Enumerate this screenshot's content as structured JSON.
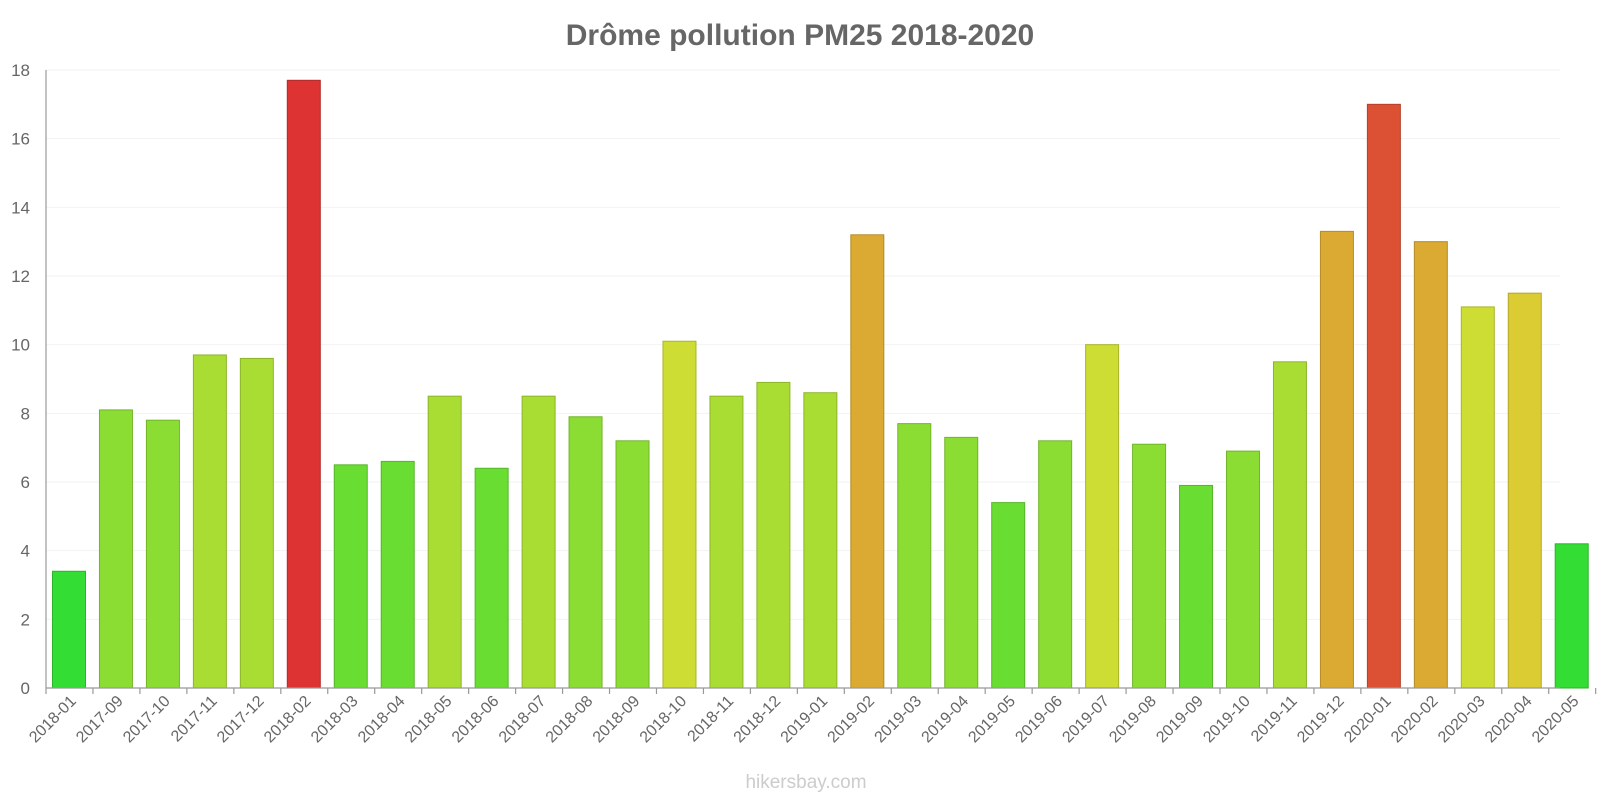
{
  "chart_data": {
    "type": "bar",
    "title": "Drôme pollution PM25 2018-2020",
    "xlabel": "",
    "ylabel": "",
    "ylim": [
      0,
      18
    ],
    "yticks": [
      "0",
      "2",
      "4",
      "6",
      "8",
      "10",
      "12",
      "14",
      "16",
      "18"
    ],
    "grid": true,
    "categories": [
      "2018-01",
      "2017-09",
      "2017-10",
      "2017-11",
      "2017-12",
      "2018-02",
      "2018-03",
      "2018-04",
      "2018-05",
      "2018-06",
      "2018-07",
      "2018-08",
      "2018-09",
      "2018-10",
      "2018-11",
      "2018-12",
      "2019-01",
      "2019-02",
      "2019-03",
      "2019-04",
      "2019-05",
      "2019-06",
      "2019-07",
      "2019-08",
      "2019-09",
      "2019-10",
      "2019-11",
      "2019-12",
      "2020-01",
      "2020-02",
      "2020-03",
      "2020-04",
      "2020-05"
    ],
    "values": [
      3.4,
      8.1,
      7.8,
      9.7,
      9.6,
      17.7,
      6.5,
      6.6,
      8.5,
      6.4,
      8.5,
      7.9,
      7.2,
      10.1,
      8.5,
      8.9,
      8.6,
      13.2,
      7.7,
      7.3,
      5.4,
      7.2,
      10.0,
      7.1,
      5.9,
      6.9,
      9.5,
      13.3,
      17.0,
      13.0,
      11.1,
      11.5,
      4.2
    ],
    "colors": [
      "#33dd33",
      "#8bdd33",
      "#8bdd33",
      "#aadd33",
      "#aadd33",
      "#dd3333",
      "#6add33",
      "#6add33",
      "#aadd33",
      "#6add33",
      "#aadd33",
      "#8bdd33",
      "#8bdd33",
      "#cddd33",
      "#aadd33",
      "#aadd33",
      "#aadd33",
      "#dbaa33",
      "#8bdd33",
      "#8bdd33",
      "#6add33",
      "#8bdd33",
      "#cddd33",
      "#8bdd33",
      "#6add33",
      "#8bdd33",
      "#aadd33",
      "#dbaa33",
      "#dc5033",
      "#dbaa33",
      "#cddd33",
      "#dbcc33",
      "#33dd33"
    ]
  },
  "watermark": "hikersbay.com"
}
